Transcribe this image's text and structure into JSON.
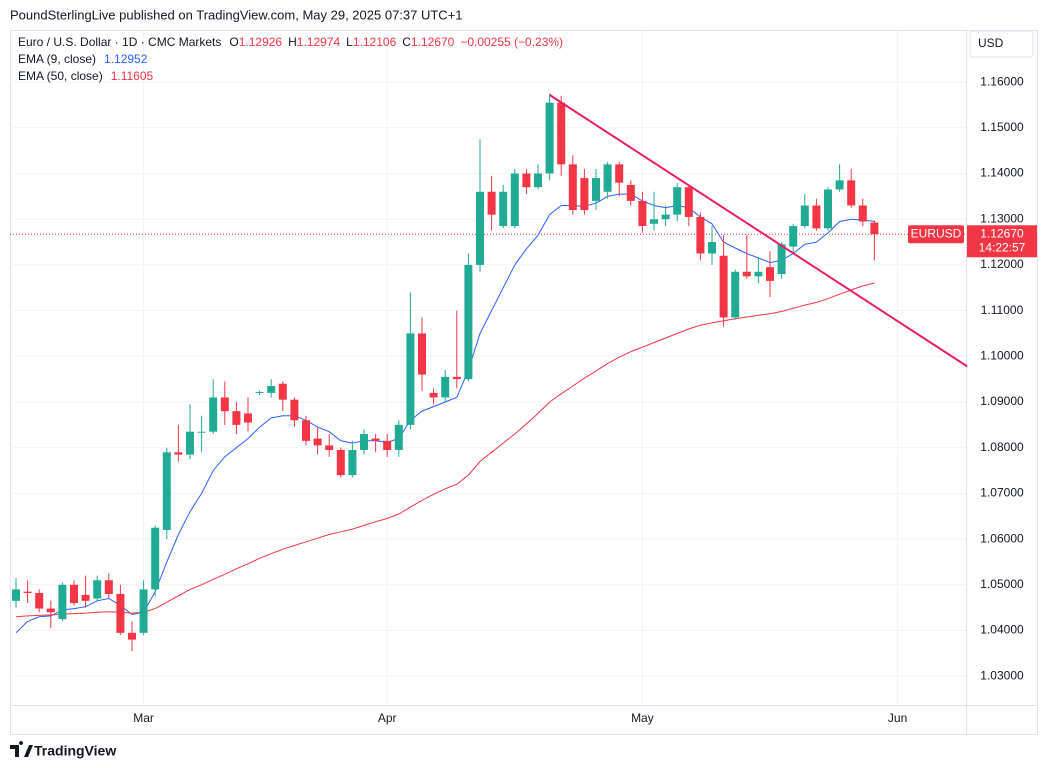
{
  "header": {
    "published": "PoundSterlingLive published on TradingView.com, May 29, 2025 07:37 UTC+1"
  },
  "chart_data": {
    "type": "candlestick",
    "title": "Euro / U.S. Dollar · 1D · CMC Markets",
    "ohlc_legend": [
      {
        "label": "O",
        "value": "1.12926"
      },
      {
        "label": "H",
        "value": "1.12974"
      },
      {
        "label": "L",
        "value": "1.12106"
      },
      {
        "label": "C",
        "value": "1.12670"
      }
    ],
    "change": "−0.00255 (−0.23%)",
    "currency": "USD",
    "symbol": "EURUSD",
    "countdown": "14:22:57",
    "categories": [
      null,
      null,
      null,
      null,
      null,
      null,
      null,
      null,
      null,
      null,
      null,
      "Mar",
      null,
      null,
      null,
      null,
      null,
      null,
      null,
      null,
      null,
      null,
      null,
      null,
      null,
      null,
      null,
      null,
      null,
      null,
      null,
      null,
      "Apr",
      null,
      null,
      null,
      null,
      null,
      null,
      null,
      null,
      null,
      null,
      null,
      null,
      null,
      null,
      null,
      null,
      null,
      null,
      null,
      null,
      null,
      "May",
      null,
      null,
      null,
      null,
      null,
      null,
      null,
      null,
      null,
      null,
      null,
      null,
      null,
      null,
      null,
      null,
      null,
      null,
      null,
      null,
      null,
      "Jun",
      null,
      null,
      null,
      null,
      null
    ],
    "open": [
      1.0465,
      1.0485,
      1.0482,
      1.0448,
      1.0425,
      1.05,
      1.0478,
      1.047,
      1.051,
      1.048,
      1.0395,
      1.0395,
      1.049,
      1.062,
      1.079,
      1.0785,
      1.0835,
      1.0835,
      1.091,
      1.088,
      1.0875,
      1.092,
      1.092,
      1.094,
      1.0905,
      1.086,
      1.082,
      1.0805,
      1.0795,
      1.074,
      1.0795,
      1.082,
      1.0815,
      1.0795,
      1.085,
      1.105,
      1.092,
      1.091,
      1.0955,
      1.095,
      1.12,
      1.136,
      1.1285,
      1.1285,
      1.14,
      1.137,
      1.14,
      1.1555,
      1.142,
      1.139,
      1.134,
      1.136,
      1.142,
      1.1375,
      1.134,
      1.129,
      1.13,
      1.131,
      1.137,
      1.1305,
      1.1225,
      1.122,
      1.1085,
      1.1185,
      1.1175,
      1.1195,
      1.118,
      1.124,
      1.1285,
      1.133,
      1.128,
      1.1365,
      1.1385,
      1.133,
      1.12926,
      null,
      null,
      null,
      null,
      null,
      null,
      null
    ],
    "high": [
      1.0515,
      1.051,
      1.049,
      1.0465,
      1.0505,
      1.051,
      1.052,
      1.052,
      1.0525,
      1.05,
      1.042,
      1.051,
      1.063,
      1.08,
      1.085,
      1.0895,
      1.087,
      1.095,
      1.0945,
      1.09,
      1.091,
      1.0925,
      1.095,
      1.0945,
      1.091,
      1.087,
      1.0845,
      1.083,
      1.08,
      1.0815,
      1.084,
      1.083,
      1.083,
      1.086,
      1.114,
      1.1085,
      1.093,
      1.097,
      1.11,
      1.1225,
      1.1475,
      1.1395,
      1.1375,
      1.141,
      1.141,
      1.142,
      1.1575,
      1.157,
      1.144,
      1.141,
      1.141,
      1.1425,
      1.1425,
      1.1385,
      1.136,
      1.136,
      1.133,
      1.138,
      1.1375,
      1.1315,
      1.1285,
      1.1265,
      1.119,
      1.1265,
      1.1215,
      1.123,
      1.125,
      1.129,
      1.1355,
      1.1345,
      1.137,
      1.142,
      1.141,
      1.1345,
      1.12974,
      null,
      null,
      null,
      null,
      null,
      null,
      null
    ],
    "low": [
      1.045,
      1.046,
      1.044,
      1.0405,
      1.042,
      1.0455,
      1.045,
      1.0465,
      1.047,
      1.039,
      1.0355,
      1.039,
      1.0475,
      1.06,
      1.077,
      1.0775,
      1.079,
      1.083,
      1.085,
      1.083,
      1.0835,
      1.0915,
      1.091,
      1.088,
      1.0845,
      1.0805,
      1.0785,
      1.078,
      1.0735,
      1.0735,
      1.0785,
      1.079,
      1.078,
      1.078,
      1.084,
      1.0925,
      1.0895,
      1.09,
      1.093,
      1.0945,
      1.1185,
      1.1275,
      1.128,
      1.128,
      1.1355,
      1.1365,
      1.1385,
      1.1395,
      1.131,
      1.131,
      1.132,
      1.1345,
      1.135,
      1.133,
      1.127,
      1.1275,
      1.1285,
      1.1295,
      1.1285,
      1.121,
      1.12,
      1.1065,
      1.108,
      1.117,
      1.116,
      1.113,
      1.117,
      1.1225,
      1.128,
      1.1275,
      1.1275,
      1.136,
      1.1325,
      1.1285,
      1.12106,
      null,
      null,
      null,
      null,
      null,
      null,
      null
    ],
    "close": [
      1.049,
      1.0482,
      1.0448,
      1.044,
      1.05,
      1.046,
      1.0465,
      1.051,
      1.048,
      1.0395,
      1.038,
      1.049,
      1.0625,
      1.079,
      1.0785,
      1.0835,
      1.0835,
      1.091,
      1.088,
      1.085,
      1.0855,
      1.0922,
      1.0935,
      1.0905,
      1.086,
      1.0815,
      1.0805,
      1.0795,
      1.074,
      1.0795,
      1.083,
      1.0815,
      1.0795,
      1.085,
      1.105,
      1.096,
      1.091,
      1.0955,
      1.095,
      1.12,
      1.136,
      1.131,
      1.136,
      1.14,
      1.137,
      1.14,
      1.1555,
      1.142,
      1.132,
      1.132,
      1.139,
      1.142,
      1.138,
      1.134,
      1.1285,
      1.13,
      1.131,
      1.137,
      1.1305,
      1.1225,
      1.125,
      1.1085,
      1.1185,
      1.1175,
      1.1185,
      1.1165,
      1.1245,
      1.1285,
      1.133,
      1.128,
      1.1365,
      1.1385,
      1.133,
      1.1295,
      1.1267,
      null,
      null,
      null,
      null,
      null,
      null,
      null
    ],
    "up_color": "#22ab94",
    "down_color": "#f23645",
    "series": [
      {
        "name": "EMA (9, close)",
        "legend_value": "1.12952",
        "color": "#2962ff",
        "values": [
          1.0395,
          1.042,
          1.043,
          1.0432,
          1.0445,
          1.0448,
          1.0452,
          1.0465,
          1.047,
          1.0455,
          1.0435,
          1.044,
          1.0485,
          1.055,
          1.061,
          1.066,
          1.07,
          1.075,
          1.078,
          1.08,
          1.082,
          1.0845,
          1.0865,
          1.087,
          1.087,
          1.086,
          1.0845,
          1.0835,
          1.0815,
          1.081,
          1.0815,
          1.0815,
          1.0812,
          1.082,
          1.086,
          1.088,
          1.089,
          1.09,
          1.091,
          1.097,
          1.105,
          1.11,
          1.115,
          1.12,
          1.1235,
          1.1265,
          1.131,
          1.133,
          1.133,
          1.1328,
          1.1335,
          1.135,
          1.1355,
          1.1355,
          1.134,
          1.133,
          1.1325,
          1.133,
          1.1325,
          1.1305,
          1.129,
          1.125,
          1.1237,
          1.1225,
          1.1215,
          1.1205,
          1.121,
          1.1225,
          1.1245,
          1.125,
          1.127,
          1.1295,
          1.13,
          1.1298,
          1.12952,
          null,
          null,
          null,
          null,
          null,
          null,
          null
        ]
      },
      {
        "name": "EMA (50, close)",
        "legend_value": "1.11605",
        "color": "#f23645",
        "values": [
          1.043,
          1.0432,
          1.0433,
          1.0434,
          1.0436,
          1.0437,
          1.0438,
          1.044,
          1.0441,
          1.044,
          1.0438,
          1.044,
          1.0448,
          1.0462,
          1.0476,
          1.049,
          1.05,
          1.0512,
          1.0523,
          1.0535,
          1.0546,
          1.0558,
          1.0568,
          1.0578,
          1.0586,
          1.0594,
          1.0602,
          1.061,
          1.0616,
          1.0622,
          1.063,
          1.0638,
          1.0645,
          1.0655,
          1.067,
          1.0685,
          1.0698,
          1.071,
          1.072,
          1.074,
          1.077,
          1.079,
          1.081,
          1.083,
          1.0852,
          1.0875,
          1.09,
          1.0918,
          1.0935,
          1.0952,
          1.0968,
          1.0984,
          1.0998,
          1.101,
          1.102,
          1.103,
          1.104,
          1.105,
          1.106,
          1.1068,
          1.1073,
          1.1078,
          1.1082,
          1.1086,
          1.109,
          1.1093,
          1.1098,
          1.1105,
          1.1112,
          1.1118,
          1.1126,
          1.1136,
          1.1145,
          1.1154,
          1.11605,
          null,
          null,
          null,
          null,
          null,
          null,
          null
        ]
      }
    ],
    "price_label": {
      "value": 1.1267,
      "label": "1.12670"
    },
    "trend_line": {
      "color": "#e91e63",
      "start": {
        "x": 46,
        "y": 1.1572
      },
      "end": {
        "x": 82,
        "y": 1.0978
      }
    },
    "ylim": [
      1.0237,
      1.1714
    ],
    "yticks": [
      {
        "value": 1.03,
        "label": "1.03000"
      },
      {
        "value": 1.04,
        "label": "1.04000"
      },
      {
        "value": 1.05,
        "label": "1.05000"
      },
      {
        "value": 1.06,
        "label": "1.06000"
      },
      {
        "value": 1.07,
        "label": "1.07000"
      },
      {
        "value": 1.08,
        "label": "1.08000"
      },
      {
        "value": 1.09,
        "label": "1.09000"
      },
      {
        "value": 1.1,
        "label": "1.10000"
      },
      {
        "value": 1.11,
        "label": "1.11000"
      },
      {
        "value": 1.12,
        "label": "1.12000"
      },
      {
        "value": 1.13,
        "label": "1.13000"
      },
      {
        "value": 1.14,
        "label": "1.14000"
      },
      {
        "value": 1.15,
        "label": "1.15000"
      },
      {
        "value": 1.16,
        "label": "1.16000"
      }
    ],
    "grid": true
  },
  "footer": {
    "brand": "TradingView"
  }
}
